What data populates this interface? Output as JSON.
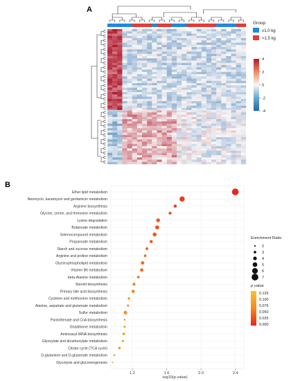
{
  "panels": {
    "a": "A",
    "b": "B"
  },
  "heatmap": {
    "group_title": "Group",
    "groups": [
      {
        "label": "≤1.0 kg",
        "color": "#1e88e5"
      },
      {
        "label": ">1.5 kg",
        "color": "#e53935"
      }
    ],
    "colorbar_ticks": [
      4,
      2,
      0,
      -2,
      -4
    ],
    "colorbar_range": [
      -4,
      4
    ],
    "colors": {
      "low": "#2166ac",
      "mid": "#f7f7f7",
      "high": "#b2182b"
    }
  },
  "chart_data": {
    "type": "scatter",
    "xlabel": "-log10(p value)",
    "xticks": [
      1.2,
      1.6,
      2.0,
      2.4
    ],
    "xlim": [
      0.95,
      2.5
    ],
    "categories": [
      "Ether lipid metabolism",
      "Neomycin, kanamycin and gentamicin metabolism",
      "Arginine biosynthesis",
      "Glycine, serine, and threonine metabolism",
      "Lysine degradation",
      "Butanoate metabolism",
      "Selenocompound metabolism",
      "Propanoate metabolism",
      "Starch and sucrose metabolism",
      "Arginine and proline metabolism",
      "Glycerophospholipid metabolism",
      "Vitamin B6 metabolism",
      "beta-Alanine metabolism",
      "Steroid biosynthesis",
      "Primary bile acid biosynthesis",
      "Cysteine and methionine metabolism",
      "Alanine, aspartate and glutamate metabolism",
      "Sulfur metabolism",
      "Pantothenate and CoA biosynthesis",
      "Glutathione metabolism",
      "Aminoacyl-tRNA biosynthesis",
      "Glyoxylate and dicarboxylate metabolism",
      "Citrate cycle (TCA cycle)",
      "D-glutamine and D-glutamate metabolism",
      "Glycolysis and gluconeogenesis"
    ],
    "series": [
      {
        "x": [
          2.4,
          1.78,
          1.7,
          1.64,
          1.5,
          1.49,
          1.46,
          1.42,
          1.37,
          1.35,
          1.32,
          1.31,
          1.27,
          1.22,
          1.21,
          1.16,
          1.15,
          1.12,
          1.11,
          1.11,
          1.1,
          1.09,
          1.05,
          0.99,
          0.97
        ],
        "enrichment_ratio": [
          7,
          5.5,
          3.6,
          3.2,
          4.2,
          4.4,
          4.3,
          3.6,
          3.2,
          3.0,
          3.8,
          3.9,
          3.0,
          3.3,
          3.5,
          2.7,
          2.6,
          4.0,
          2.2,
          2.5,
          2.9,
          2.6,
          3.0,
          2.3,
          2.0
        ],
        "p_value": [
          0.004,
          0.016,
          0.02,
          0.023,
          0.032,
          0.032,
          0.035,
          0.038,
          0.043,
          0.045,
          0.048,
          0.049,
          0.054,
          0.06,
          0.062,
          0.069,
          0.071,
          0.076,
          0.078,
          0.078,
          0.079,
          0.081,
          0.089,
          0.102,
          0.107
        ]
      }
    ],
    "legend_size": {
      "title": "Enrichment Ratio",
      "values": [
        2,
        3,
        4,
        5,
        6,
        7
      ]
    },
    "legend_color": {
      "title": "p value",
      "ticks": [
        "0.125",
        "0.100",
        "0.075",
        "0.050",
        "0.025",
        "0.000"
      ],
      "range": [
        0,
        0.135
      ]
    },
    "grid": true
  }
}
